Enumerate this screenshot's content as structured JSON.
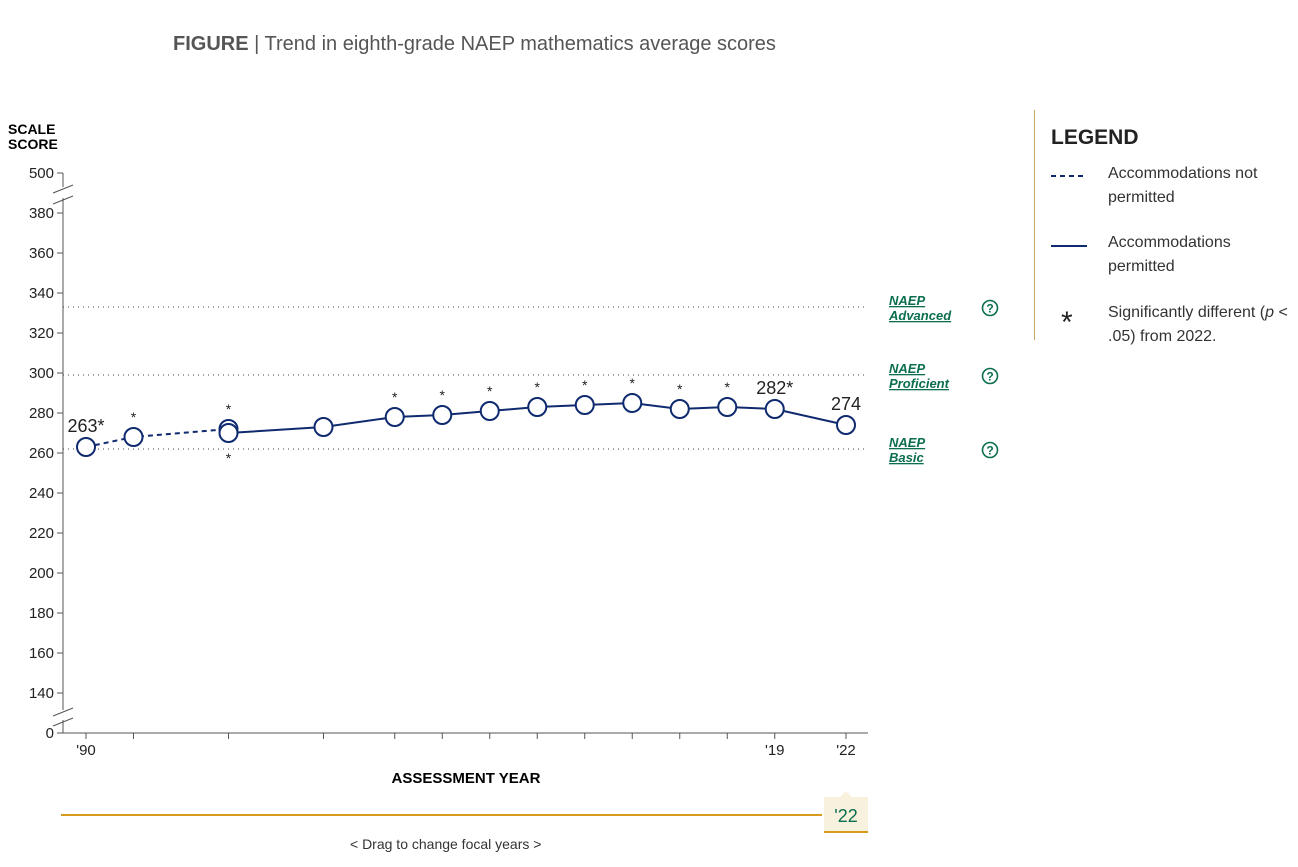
{
  "title": {
    "figure_label": "FIGURE",
    "separator": "|",
    "text": "Trend in eighth-grade NAEP mathematics average scores"
  },
  "legend": {
    "heading": "LEGEND",
    "not_permitted": "Accommodations not permitted",
    "permitted": "Accommodations permitted",
    "star_symbol": "*",
    "sig_prefix": "Significantly different (",
    "sig_p": "p",
    "sig_suffix": " < .05) from 2022."
  },
  "slider": {
    "focal_label": "'22",
    "hint": "<  Drag to change focal years  >"
  },
  "colors": {
    "series": "#0f2a6e",
    "achievement": "#0b6e4f",
    "slider": "#d79a1c",
    "grid": "#555555"
  },
  "icons": {
    "help": "question-circle-icon"
  },
  "chart_data": {
    "type": "line",
    "title": "Trend in eighth-grade NAEP mathematics average scores",
    "ylabel_lines": [
      "SCALE",
      "SCORE"
    ],
    "xlabel": "ASSESSMENT YEAR",
    "y_ticks": [
      "0",
      "140",
      "160",
      "180",
      "200",
      "220",
      "240",
      "260",
      "280",
      "300",
      "320",
      "340",
      "360",
      "380",
      "500"
    ],
    "y_tick_values": [
      0,
      140,
      160,
      180,
      200,
      220,
      240,
      260,
      280,
      300,
      320,
      340,
      360,
      380,
      500
    ],
    "y_axis_break": "between 0 and 140, and between 380 and 500",
    "ylim": [
      140,
      380
    ],
    "xlim": [
      1990,
      2022
    ],
    "x_tick_years": [
      1990,
      1992,
      1996,
      2000,
      2003,
      2005,
      2007,
      2009,
      2011,
      2013,
      2015,
      2017,
      2019,
      2022
    ],
    "x_tick_labels": [
      {
        "year": 1990,
        "label": "'90"
      },
      {
        "year": 2019,
        "label": "'19"
      },
      {
        "year": 2022,
        "label": "'22"
      }
    ],
    "achievement_levels": [
      {
        "name": "NAEP Advanced",
        "line1": "NAEP",
        "line2": "Advanced",
        "score": 333
      },
      {
        "name": "NAEP Proficient",
        "line1": "NAEP",
        "line2": "Proficient",
        "score": 299
      },
      {
        "name": "NAEP Basic",
        "line1": "NAEP",
        "line2": "Basic",
        "score": 262
      }
    ],
    "series": [
      {
        "name": "Accommodations not permitted",
        "style": "dashed",
        "points": [
          {
            "year": 1990,
            "score": 263,
            "sig": true,
            "label": "263*"
          },
          {
            "year": 1992,
            "score": 268,
            "sig": true
          },
          {
            "year": 1996,
            "score": 272,
            "sig": true
          }
        ]
      },
      {
        "name": "Accommodations permitted",
        "style": "solid",
        "points": [
          {
            "year": 1996,
            "score": 270,
            "sig": true
          },
          {
            "year": 2000,
            "score": 273,
            "sig": false
          },
          {
            "year": 2003,
            "score": 278,
            "sig": true
          },
          {
            "year": 2005,
            "score": 279,
            "sig": true
          },
          {
            "year": 2007,
            "score": 281,
            "sig": true
          },
          {
            "year": 2009,
            "score": 283,
            "sig": true
          },
          {
            "year": 2011,
            "score": 284,
            "sig": true
          },
          {
            "year": 2013,
            "score": 285,
            "sig": true
          },
          {
            "year": 2015,
            "score": 282,
            "sig": true
          },
          {
            "year": 2017,
            "score": 283,
            "sig": true
          },
          {
            "year": 2019,
            "score": 282,
            "sig": true,
            "label": "282*"
          },
          {
            "year": 2022,
            "score": 274,
            "sig": false,
            "label": "274"
          }
        ]
      }
    ]
  }
}
